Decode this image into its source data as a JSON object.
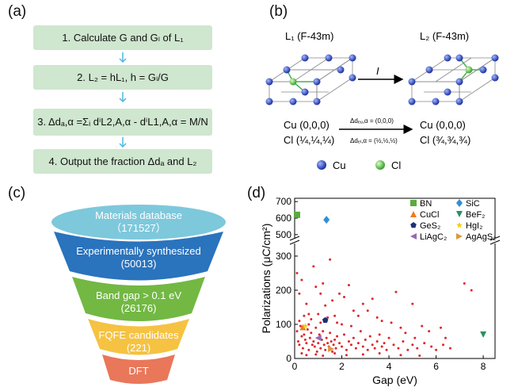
{
  "panel_a": {
    "label": "(a)",
    "steps": [
      "1. Calculate G and Gₗ of L₁",
      "2. L₂ = hL₁, h = Gₗ/G",
      "3. Δdₐ,α =Σᵢ dⁱL2,A,α - dⁱL1,A,α = M/N",
      "4. Output the fraction Δdₐ and L₂"
    ]
  },
  "panel_b": {
    "label": "(b)",
    "left_title": "L₁ (F-43m)",
    "right_title": "L₂ (F-43m)",
    "arrow_label": "I",
    "left_cu": "Cu (0,0,0)",
    "left_cl": "Cl (¼,¼,¼)",
    "right_cu": "Cu (0,0,0)",
    "right_cl": "Cl (¾,¾,¾)",
    "delta_cu": "Δdₑᵤ,α = (0,0,0)",
    "delta_cl": "Δdₑₗ,α = (½,½,½)",
    "legend_cu": "Cu",
    "legend_cl": "Cl"
  },
  "panel_c": {
    "label": "(c)",
    "tiers": [
      {
        "title": "Materials database",
        "count": "（171527）",
        "color": "#7ec8dc"
      },
      {
        "title": "Experimentally synthesized",
        "count": "(50013)",
        "color": "#2a73bd"
      },
      {
        "title": "Band gap > 0.1 eV",
        "count": "(26176)",
        "color": "#72b843"
      },
      {
        "title": "FQFE candidates",
        "count": "(221)",
        "color": "#f5c242"
      },
      {
        "title": "DFT",
        "count": "",
        "color": "#e9775a"
      }
    ]
  },
  "panel_d": {
    "label": "(d)"
  },
  "chart_data": {
    "type": "scatter",
    "xlabel": "Gap (eV)",
    "ylabel": "Polarizations (μC/cm²)",
    "xlim": [
      0,
      8.5
    ],
    "x_ticks": [
      "0",
      "2",
      "4",
      "6",
      "8"
    ],
    "y_ticks_lower": [
      "0",
      "100",
      "200",
      "300"
    ],
    "y_ticks_upper": [
      "500",
      "600",
      "700"
    ],
    "axis_break": [
      330,
      480
    ],
    "grid": false,
    "legend_position": "top-right",
    "legend": [
      {
        "name": "BN",
        "marker": "square",
        "color": "#5aab3f"
      },
      {
        "name": "SiC",
        "marker": "diamond",
        "color": "#2f8fd6"
      },
      {
        "name": "CuCl",
        "marker": "triangle-up",
        "color": "#ef7a1a"
      },
      {
        "name": "BeF₂",
        "marker": "triangle-down",
        "color": "#2c8f5f"
      },
      {
        "name": "GeS₂",
        "marker": "pentagon",
        "color": "#1e2f7a"
      },
      {
        "name": "HgI₂",
        "marker": "star",
        "color": "#f2d018"
      },
      {
        "name": "LiAgC₂",
        "marker": "triangle-left",
        "color": "#9a67b3"
      },
      {
        "name": "AgAgS₂",
        "marker": "triangle-right",
        "color": "#d99a3a"
      }
    ],
    "highlighted": [
      {
        "name": "BN",
        "x": 0.1,
        "y": 620
      },
      {
        "name": "SiC",
        "x": 1.35,
        "y": 590
      },
      {
        "name": "CuCl",
        "x": 0.35,
        "y": 92
      },
      {
        "name": "BeF₂",
        "x": 8.0,
        "y": 70
      },
      {
        "name": "GeS₂",
        "x": 1.3,
        "y": 112
      },
      {
        "name": "HgI₂",
        "x": 0.45,
        "y": 95
      },
      {
        "name": "LiAgC₂",
        "x": 1.0,
        "y": 60
      },
      {
        "name": "AgAgS₂",
        "x": 1.55,
        "y": 28
      }
    ],
    "points": [
      [
        0.1,
        250
      ],
      [
        0.2,
        190
      ],
      [
        0.3,
        230
      ],
      [
        0.5,
        160
      ],
      [
        0.6,
        100
      ],
      [
        0.8,
        270
      ],
      [
        0.9,
        210
      ],
      [
        1.1,
        190
      ],
      [
        1.2,
        220
      ],
      [
        1.3,
        155
      ],
      [
        1.5,
        290
      ],
      [
        1.6,
        170
      ],
      [
        1.7,
        125
      ],
      [
        1.9,
        190
      ],
      [
        2.1,
        180
      ],
      [
        2.3,
        215
      ],
      [
        2.5,
        140
      ],
      [
        2.7,
        125
      ],
      [
        2.9,
        160
      ],
      [
        3.1,
        140
      ],
      [
        3.3,
        175
      ],
      [
        3.5,
        120
      ],
      [
        3.7,
        110
      ],
      [
        4.1,
        105
      ],
      [
        4.3,
        195
      ],
      [
        4.5,
        90
      ],
      [
        4.7,
        75
      ],
      [
        5.0,
        160
      ],
      [
        5.1,
        60
      ],
      [
        5.4,
        95
      ],
      [
        5.7,
        80
      ],
      [
        6.2,
        90
      ],
      [
        6.4,
        60
      ],
      [
        7.2,
        220
      ],
      [
        7.5,
        200
      ],
      [
        0.1,
        80
      ],
      [
        0.15,
        50
      ],
      [
        0.2,
        40
      ],
      [
        0.25,
        95
      ],
      [
        0.3,
        65
      ],
      [
        0.35,
        30
      ],
      [
        0.4,
        70
      ],
      [
        0.45,
        55
      ],
      [
        0.5,
        45
      ],
      [
        0.55,
        85
      ],
      [
        0.6,
        25
      ],
      [
        0.65,
        60
      ],
      [
        0.7,
        75
      ],
      [
        0.75,
        40
      ],
      [
        0.8,
        50
      ],
      [
        0.85,
        35
      ],
      [
        0.9,
        90
      ],
      [
        0.95,
        20
      ],
      [
        1.0,
        45
      ],
      [
        1.05,
        70
      ],
      [
        1.1,
        30
      ],
      [
        1.15,
        55
      ],
      [
        1.2,
        80
      ],
      [
        1.25,
        40
      ],
      [
        1.3,
        25
      ],
      [
        1.35,
        60
      ],
      [
        1.4,
        45
      ],
      [
        1.45,
        35
      ],
      [
        1.5,
        75
      ],
      [
        1.55,
        50
      ],
      [
        1.6,
        20
      ],
      [
        1.65,
        40
      ],
      [
        1.7,
        55
      ],
      [
        1.75,
        30
      ],
      [
        1.8,
        65
      ],
      [
        1.9,
        45
      ],
      [
        2.0,
        35
      ],
      [
        2.1,
        70
      ],
      [
        2.2,
        25
      ],
      [
        2.3,
        50
      ],
      [
        2.4,
        40
      ],
      [
        2.5,
        60
      ],
      [
        2.6,
        30
      ],
      [
        2.7,
        45
      ],
      [
        2.8,
        80
      ],
      [
        2.9,
        35
      ],
      [
        3.0,
        55
      ],
      [
        3.1,
        25
      ],
      [
        3.2,
        65
      ],
      [
        3.3,
        40
      ],
      [
        3.4,
        30
      ],
      [
        3.5,
        50
      ],
      [
        3.6,
        70
      ],
      [
        3.7,
        35
      ],
      [
        3.8,
        45
      ],
      [
        3.9,
        25
      ],
      [
        4.0,
        60
      ],
      [
        4.2,
        40
      ],
      [
        4.4,
        30
      ],
      [
        4.6,
        50
      ],
      [
        4.8,
        25
      ],
      [
        5.0,
        40
      ],
      [
        5.2,
        30
      ],
      [
        5.5,
        45
      ],
      [
        5.8,
        35
      ],
      [
        6.0,
        25
      ],
      [
        6.3,
        40
      ],
      [
        6.6,
        30
      ],
      [
        0.2,
        110
      ],
      [
        0.4,
        125
      ],
      [
        0.6,
        130
      ],
      [
        0.7,
        115
      ],
      [
        1.0,
        130
      ],
      [
        1.1,
        105
      ],
      [
        1.4,
        120
      ],
      [
        1.8,
        105
      ],
      [
        2.0,
        100
      ],
      [
        2.4,
        95
      ],
      [
        0.3,
        15
      ],
      [
        0.5,
        10
      ],
      [
        0.9,
        12
      ],
      [
        1.2,
        8
      ],
      [
        1.7,
        15
      ],
      [
        2.2,
        10
      ],
      [
        2.9,
        12
      ],
      [
        3.6,
        15
      ],
      [
        4.5,
        10
      ],
      [
        5.3,
        8
      ]
    ]
  }
}
